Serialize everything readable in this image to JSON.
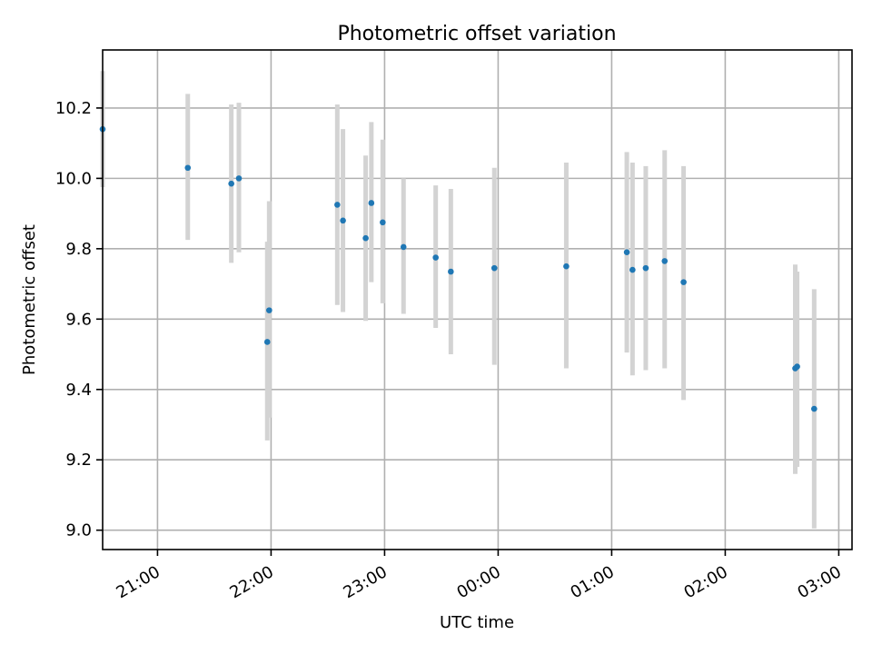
{
  "chart_data": {
    "type": "scatter",
    "title": "Photometric offset variation",
    "xlabel": "UTC time",
    "ylabel": "Photometric offset",
    "x_ticks": [
      "21:00",
      "22:00",
      "23:00",
      "00:00",
      "01:00",
      "02:00",
      "03:00"
    ],
    "y_ticks": [
      "9.0",
      "9.2",
      "9.4",
      "9.6",
      "9.8",
      "10.0",
      "10.2"
    ],
    "y_tick_values": [
      9.0,
      9.2,
      9.4,
      9.6,
      9.8,
      10.0,
      10.2
    ],
    "ylim": [
      8.945,
      10.365
    ],
    "xlim": [
      "20:31",
      "03:07"
    ],
    "grid": true,
    "colors": {
      "marker": "#1f77b4",
      "errorbar": "#d3d3d3",
      "grid": "#b0b0b0"
    },
    "points": [
      {
        "t": "20:31",
        "y": 10.14,
        "lo": 9.975,
        "hi": 10.305
      },
      {
        "t": "21:16",
        "y": 10.03,
        "lo": 9.825,
        "hi": 10.24
      },
      {
        "t": "21:39",
        "y": 9.985,
        "lo": 9.76,
        "hi": 10.21
      },
      {
        "t": "21:43",
        "y": 10.0,
        "lo": 9.79,
        "hi": 10.215
      },
      {
        "t": "21:58",
        "y": 9.535,
        "lo": 9.255,
        "hi": 9.82
      },
      {
        "t": "21:59",
        "y": 9.625,
        "lo": 9.32,
        "hi": 9.935
      },
      {
        "t": "22:35",
        "y": 9.925,
        "lo": 9.64,
        "hi": 10.21
      },
      {
        "t": "22:38",
        "y": 9.88,
        "lo": 9.62,
        "hi": 10.14
      },
      {
        "t": "22:50",
        "y": 9.83,
        "lo": 9.595,
        "hi": 10.065
      },
      {
        "t": "22:53",
        "y": 9.93,
        "lo": 9.705,
        "hi": 10.16
      },
      {
        "t": "22:59",
        "y": 9.875,
        "lo": 9.645,
        "hi": 10.11
      },
      {
        "t": "23:10",
        "y": 9.805,
        "lo": 9.615,
        "hi": 10.0
      },
      {
        "t": "23:27",
        "y": 9.775,
        "lo": 9.575,
        "hi": 9.98
      },
      {
        "t": "23:35",
        "y": 9.735,
        "lo": 9.5,
        "hi": 9.97
      },
      {
        "t": "23:58",
        "y": 9.745,
        "lo": 9.47,
        "hi": 10.03
      },
      {
        "t": "00:36",
        "y": 9.75,
        "lo": 9.46,
        "hi": 10.045
      },
      {
        "t": "01:08",
        "y": 9.79,
        "lo": 9.505,
        "hi": 10.075
      },
      {
        "t": "01:11",
        "y": 9.74,
        "lo": 9.44,
        "hi": 10.045
      },
      {
        "t": "01:18",
        "y": 9.745,
        "lo": 9.455,
        "hi": 10.035
      },
      {
        "t": "01:28",
        "y": 9.765,
        "lo": 9.46,
        "hi": 10.08
      },
      {
        "t": "01:38",
        "y": 9.705,
        "lo": 9.37,
        "hi": 10.035
      },
      {
        "t": "02:37",
        "y": 9.46,
        "lo": 9.16,
        "hi": 9.755
      },
      {
        "t": "02:38",
        "y": 9.465,
        "lo": 9.18,
        "hi": 9.735
      },
      {
        "t": "02:47",
        "y": 9.345,
        "lo": 9.005,
        "hi": 9.685
      }
    ]
  }
}
